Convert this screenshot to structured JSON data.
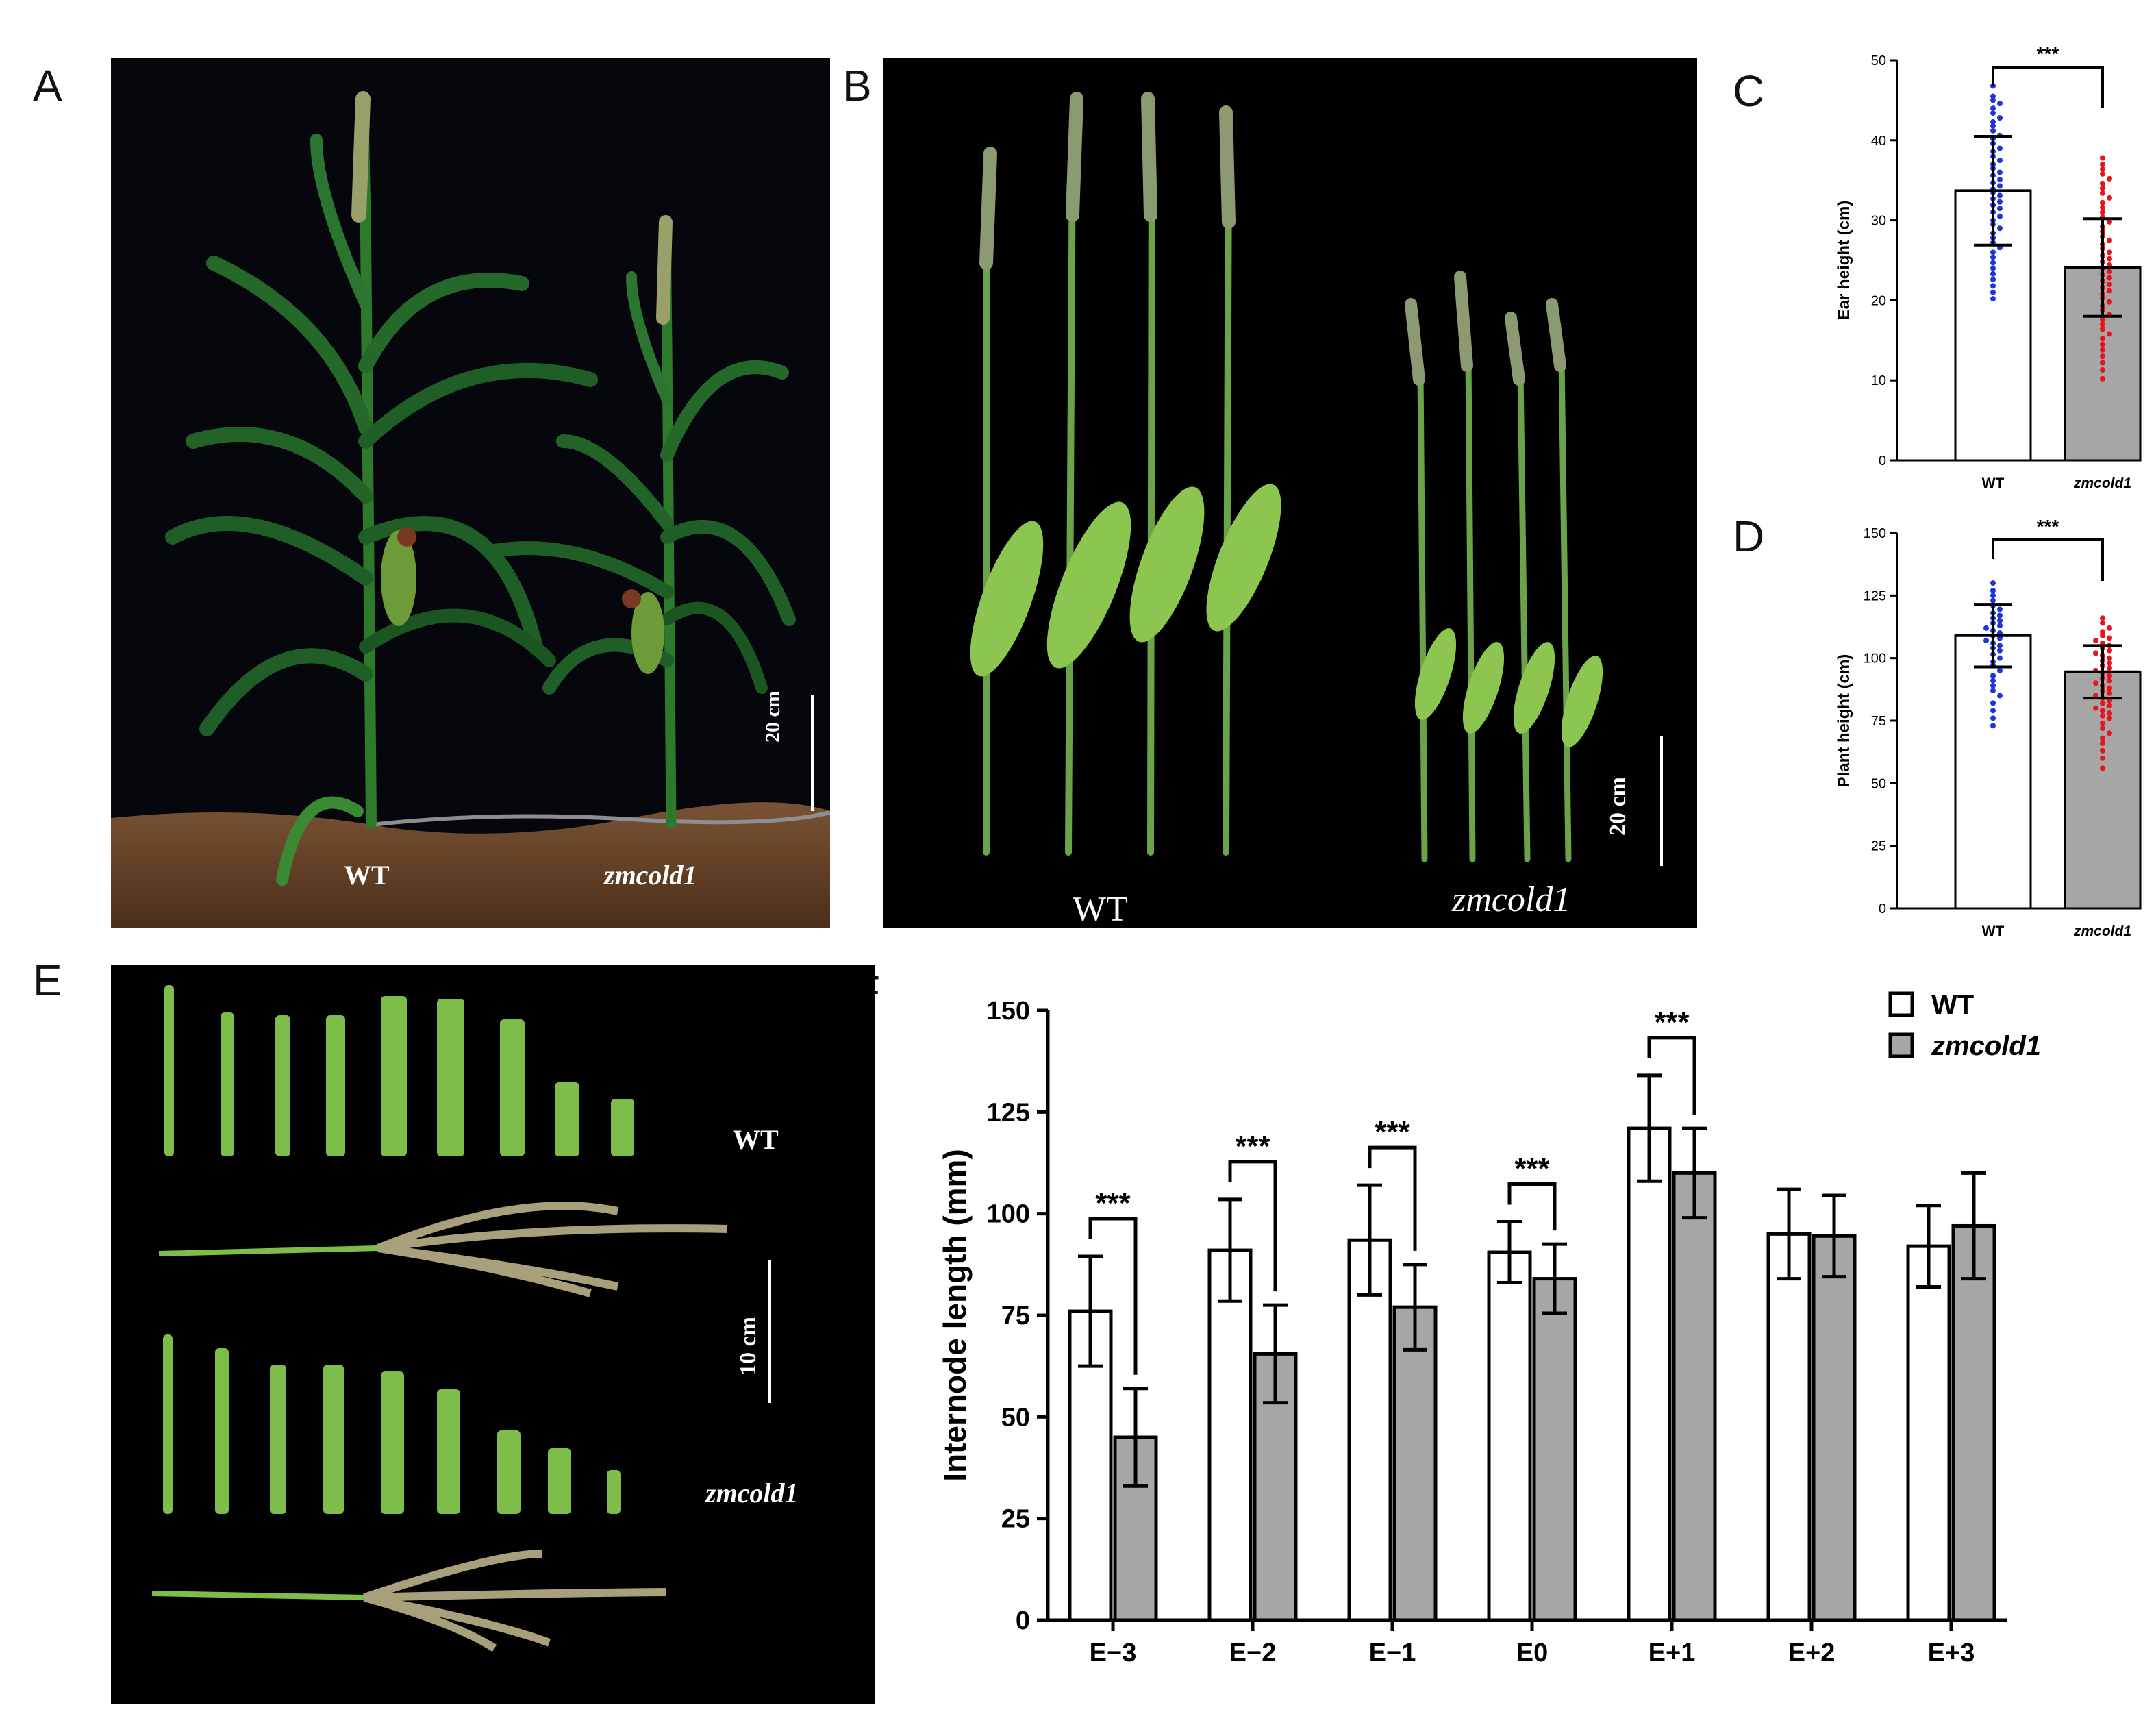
{
  "panels": {
    "A": "A",
    "B": "B",
    "C": "C",
    "D": "D",
    "E": "E",
    "F": "F"
  },
  "photo_a": {
    "wt": "WT",
    "mutant": "zmcold1",
    "scale": "20 cm"
  },
  "photo_b": {
    "wt": "WT",
    "mutant": "zmcold1",
    "scale": "20 cm"
  },
  "photo_e": {
    "wt": "WT",
    "mutant": "zmcold1",
    "scale": "10 cm"
  },
  "colors": {
    "wt_dots": "#1f35d6",
    "mutant_dots": "#e8141c",
    "mutant_bar": "#a6a6a6"
  },
  "chart_data": [
    {
      "type": "bar",
      "panel": "C",
      "categories": [
        "WT",
        "zmcold1"
      ],
      "values": [
        33.7,
        24.1
      ],
      "sd": [
        6.8,
        6.1
      ],
      "ylabel": "Ear height (cm)",
      "ylim": [
        0,
        50
      ],
      "yticks": [
        0,
        10,
        20,
        30,
        40,
        50
      ],
      "significance": "***",
      "points": [
        [
          46.8,
          45.5,
          45.0,
          44.6,
          44.0,
          43.4,
          42.8,
          42.3,
          41.8,
          41.2,
          40.6,
          40.2,
          39.6,
          39.0,
          38.6,
          38.0,
          37.5,
          37.0,
          36.5,
          36.0,
          35.6,
          35.1,
          34.7,
          34.3,
          33.9,
          33.5,
          33.1,
          32.7,
          32.3,
          31.9,
          31.5,
          31.0,
          30.5,
          30.0,
          29.5,
          29.0,
          28.4,
          27.8,
          27.2,
          26.6,
          26.0,
          25.4,
          24.7,
          24.0,
          23.3,
          22.6,
          21.8,
          21.0,
          20.2
        ],
        [
          37.8,
          37.0,
          36.4,
          35.8,
          35.2,
          34.6,
          34.0,
          33.4,
          32.8,
          32.2,
          31.6,
          31.0,
          30.4,
          29.8,
          29.2,
          28.6,
          28.0,
          27.5,
          27.0,
          26.5,
          26.0,
          25.6,
          25.2,
          24.8,
          24.4,
          24.0,
          23.6,
          23.2,
          22.8,
          22.4,
          22.0,
          21.6,
          21.2,
          20.8,
          20.3,
          19.8,
          19.3,
          18.8,
          18.2,
          17.6,
          17.0,
          16.4,
          15.8,
          15.2,
          14.5,
          13.8,
          13.0,
          12.2,
          11.3,
          10.2
        ]
      ]
    },
    {
      "type": "bar",
      "panel": "D",
      "categories": [
        "WT",
        "zmcold1"
      ],
      "values": [
        109.0,
        94.5
      ],
      "sd": [
        12.5,
        10.5
      ],
      "ylabel": "Plant height (cm)",
      "ylim": [
        0,
        150
      ],
      "yticks": [
        0,
        25,
        50,
        75,
        100,
        125,
        150
      ],
      "significance": "***",
      "points": [
        [
          130,
          127,
          125,
          123,
          121,
          119.5,
          118,
          117,
          116,
          115,
          114,
          113,
          112,
          111,
          110,
          109,
          108,
          107,
          106,
          105,
          104,
          103,
          101.5,
          100,
          98.5,
          97,
          95,
          93,
          91,
          89,
          87,
          85,
          82,
          79,
          76,
          73
        ],
        [
          116,
          114,
          112,
          110.5,
          109,
          108,
          107,
          106,
          105,
          104,
          103,
          102,
          101,
          100,
          99,
          98,
          97,
          96,
          95,
          94,
          93,
          92,
          91,
          90,
          89,
          88,
          87,
          86,
          85,
          84,
          83,
          82,
          81,
          80,
          79,
          78,
          77,
          76,
          74,
          72,
          70,
          68,
          66,
          63,
          60,
          56
        ]
      ]
    },
    {
      "type": "bar",
      "panel": "F",
      "categories": [
        "E−3",
        "E−2",
        "E−1",
        "E0",
        "E+1",
        "E+2",
        "E+3"
      ],
      "ylabel": "Internode length (mm)",
      "ylim": [
        0,
        150
      ],
      "yticks": [
        0,
        25,
        50,
        75,
        100,
        125,
        150
      ],
      "legend": "top-right",
      "series": [
        {
          "name": "WT",
          "values": [
            76,
            91,
            93.5,
            90.5,
            121,
            95,
            92
          ],
          "sd": [
            13.5,
            12.5,
            13.5,
            7.5,
            13,
            11,
            10
          ],
          "color": "#ffffff"
        },
        {
          "name": "zmcold1",
          "values": [
            45,
            65.5,
            77,
            84,
            110,
            94.5,
            97
          ],
          "sd": [
            12,
            12,
            10.5,
            8.5,
            11,
            10,
            13
          ],
          "color": "#a6a6a6"
        }
      ],
      "significance": [
        "***",
        "***",
        "***",
        "***",
        "***",
        "",
        ""
      ]
    }
  ]
}
